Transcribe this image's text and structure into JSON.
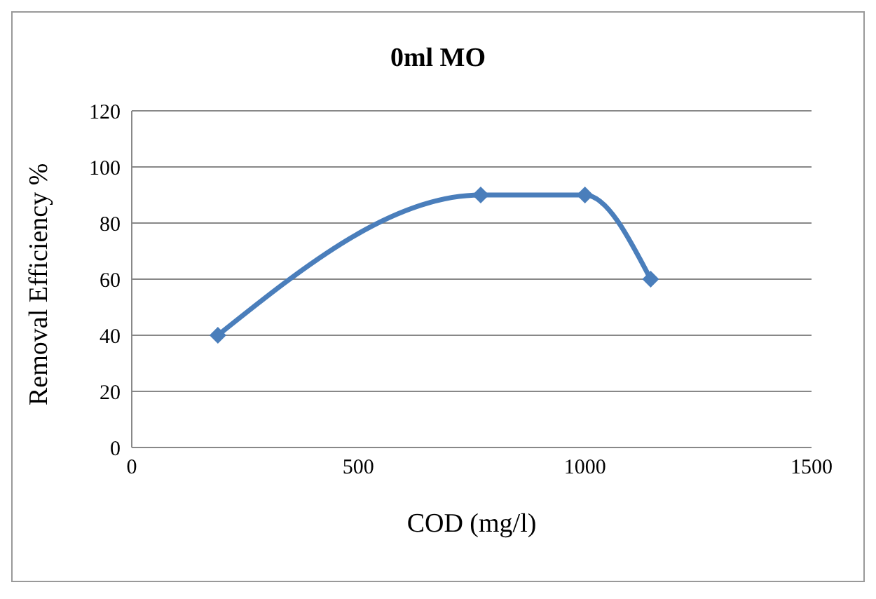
{
  "chart_data": {
    "type": "line",
    "title": "0ml MO",
    "xlabel": "COD (mg/l)",
    "ylabel": "Removal Efficiency %",
    "x": [
      190,
      770,
      1000,
      1145
    ],
    "series": [
      {
        "color": "#4a7ebb",
        "values": [
          40,
          90,
          90,
          60
        ]
      }
    ],
    "xlim": [
      0,
      1500
    ],
    "xticks": [
      0,
      500,
      1000,
      1500
    ],
    "ylim": [
      0,
      120
    ],
    "yticks": [
      0,
      20,
      40,
      60,
      80,
      100,
      120
    ],
    "grid": "y",
    "marker": "diamond",
    "line_style": "solid"
  }
}
